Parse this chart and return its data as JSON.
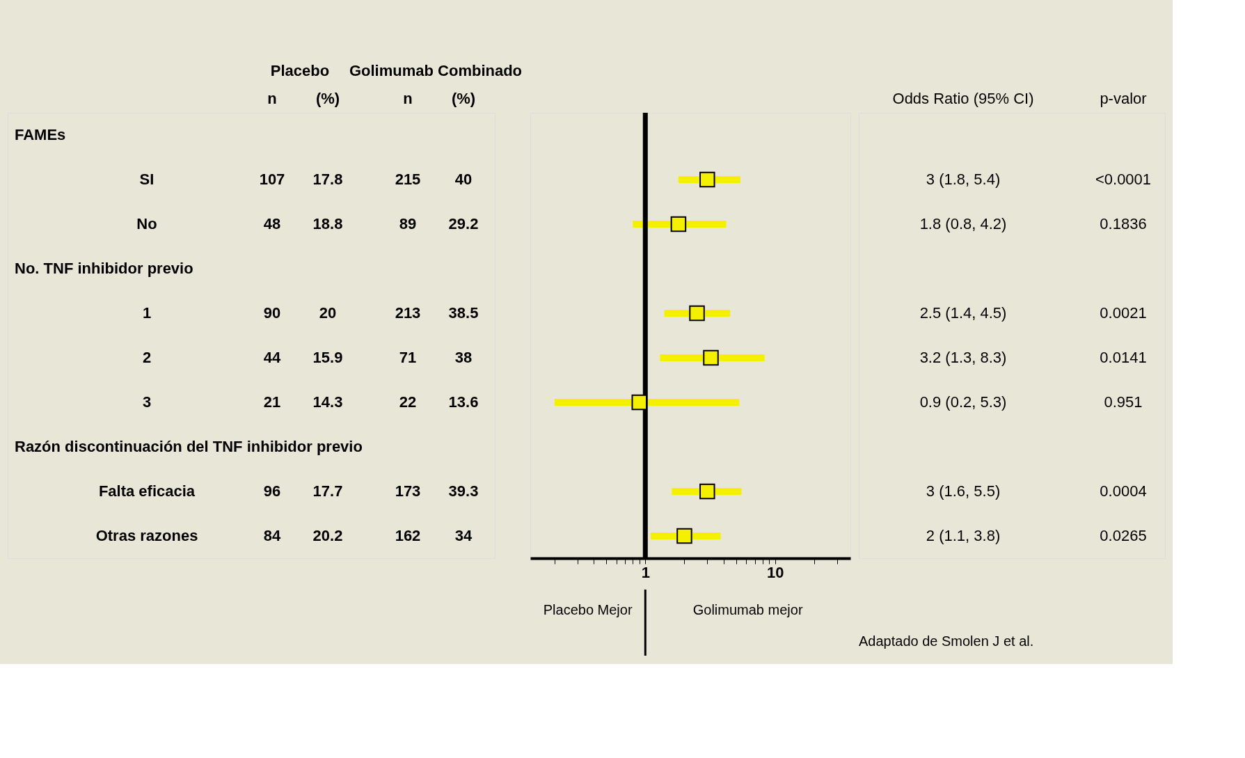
{
  "chart_data": [
    {
      "type": "other",
      "categories": [
        "n",
        "(%)",
        "n",
        "(%)"
      ],
      "annotations": [
        "Placebo",
        "Golimumab Combinado"
      ],
      "cell_labels": [
        [
          null,
          null,
          null,
          null
        ],
        [
          "107",
          "17.8",
          "215",
          "40"
        ],
        [
          "48",
          "18.8",
          "89",
          "29.2"
        ],
        [
          null,
          null,
          null,
          null
        ],
        [
          "90",
          "20",
          "213",
          "38.5"
        ],
        [
          "44",
          "15.9",
          "71",
          "38"
        ],
        [
          "21",
          "14.3",
          "22",
          "13.6"
        ],
        [
          null,
          null,
          null,
          null
        ],
        [
          "96",
          "17.7",
          "173",
          "39.3"
        ],
        [
          "84",
          "20.2",
          "162",
          "34"
        ]
      ]
    },
    {
      "type": "scatter",
      "orientation": "horizontal",
      "tick_labels": "x",
      "log": "x",
      "grid": false,
      "marker": "square",
      "color": "#f5f000",
      "categories": [
        "FAMEs",
        "SI",
        "No",
        "No. TNF inhibidor previo",
        "1",
        "2",
        "3",
        "Razón discontinuación del TNF inhibidor previo",
        "Falta eficacia",
        "Otras razones"
      ],
      "values": [
        null,
        3,
        1.8,
        null,
        2.5,
        3.2,
        0.9,
        null,
        3,
        2
      ],
      "errors": [
        null,
        [
          1.8,
          5.4
        ],
        [
          0.8,
          4.2
        ],
        null,
        [
          1.4,
          4.5
        ],
        [
          1.3,
          8.3
        ],
        [
          0.2,
          5.3
        ],
        null,
        [
          1.6,
          5.5
        ],
        [
          1.1,
          3.8
        ]
      ],
      "xlim": [
        0.13,
        38
      ],
      "xticks": [
        {
          "value": 0.2,
          "label": null
        },
        {
          "value": 0.3,
          "label": null
        },
        {
          "value": 0.4,
          "label": null
        },
        {
          "value": 0.5,
          "label": null
        },
        {
          "value": 0.6,
          "label": null
        },
        {
          "value": 0.7,
          "label": null
        },
        {
          "value": 0.8,
          "label": null
        },
        {
          "value": 0.9,
          "label": null
        },
        1,
        {
          "value": 2,
          "label": null
        },
        {
          "value": 3,
          "label": null
        },
        {
          "value": 4,
          "label": null
        },
        {
          "value": 5,
          "label": null
        },
        {
          "value": 6,
          "label": null
        },
        {
          "value": 7,
          "label": null
        },
        {
          "value": 8,
          "label": null
        },
        {
          "value": 9,
          "label": null
        },
        10,
        {
          "value": 20,
          "label": null
        },
        {
          "value": 30,
          "label": null
        }
      ],
      "ref_lines": [
        {
          "axis": "x",
          "value": 1,
          "color": "#000000"
        }
      ],
      "annotations": [
        "Placebo Mejor",
        "Golimumab mejor"
      ]
    },
    {
      "type": "other",
      "categories": [
        "Odds Ratio (95% CI)",
        "p-valor"
      ],
      "cell_labels": [
        [
          null,
          null
        ],
        [
          "3   (1.8, 5.4)",
          "<0.0001"
        ],
        [
          "1.8   (0.8, 4.2)",
          "0.1836"
        ],
        [
          null,
          null
        ],
        [
          "2.5   (1.4, 4.5)",
          "0.0021"
        ],
        [
          "3.2   (1.3, 8.3)",
          "0.0141"
        ],
        [
          "0.9   (0.2, 5.3)",
          "0.951"
        ],
        [
          null,
          null
        ],
        [
          "3   (1.6, 5.5)",
          "0.0004"
        ],
        [
          "2   (1.1, 3.8)",
          "0.0265"
        ]
      ],
      "annotations": [
        "Adaptado de Smolen J et al."
      ]
    }
  ]
}
